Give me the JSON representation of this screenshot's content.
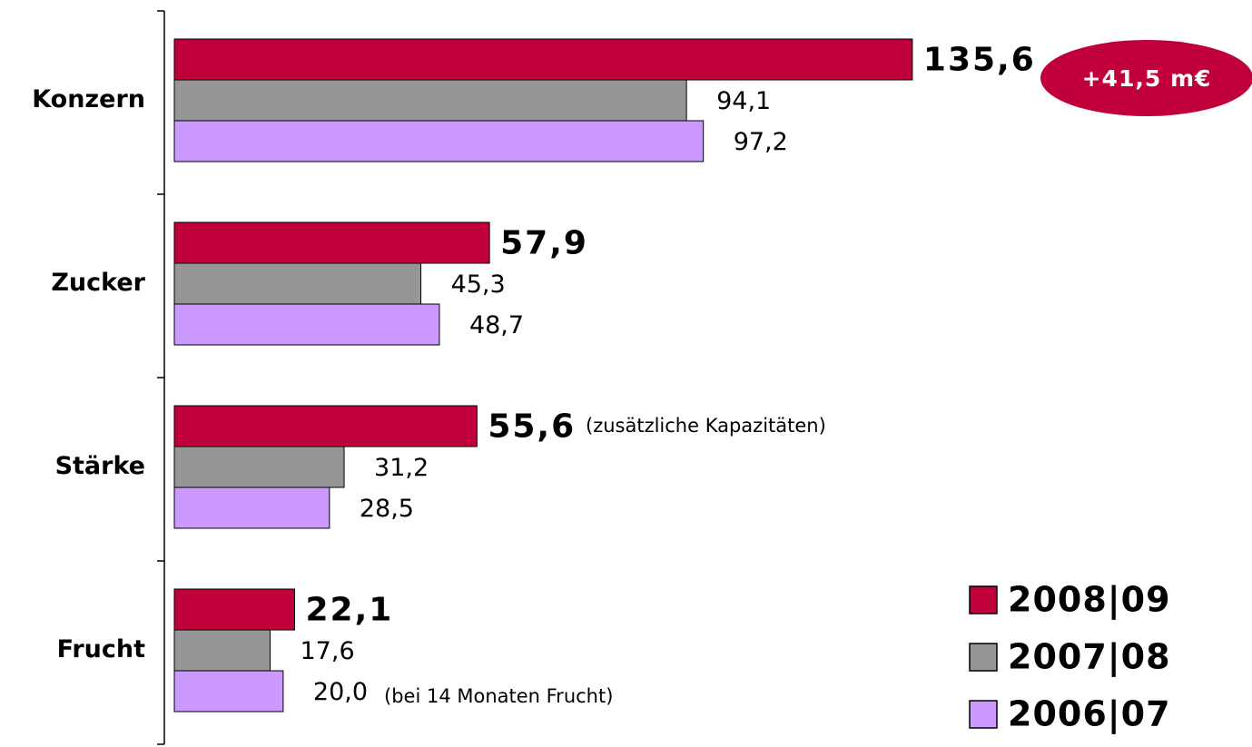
{
  "chart_data": {
    "type": "hbar",
    "categories": [
      "Konzern",
      "Zucker",
      "Stärke",
      "Frucht"
    ],
    "series": [
      {
        "name": "2008|09",
        "color": "#c0003a",
        "values": [
          135.6,
          57.9,
          55.6,
          22.1
        ],
        "value_labels": [
          "135,6",
          "57,9",
          "55,6",
          "22,1"
        ]
      },
      {
        "name": "2007|08",
        "color": "#969696",
        "values": [
          94.1,
          45.3,
          31.2,
          17.6
        ],
        "value_labels": [
          "94,1",
          "45,3",
          "31,2",
          "17,6"
        ]
      },
      {
        "name": "2006|07",
        "color": "#cc99ff",
        "values": [
          97.2,
          48.7,
          28.5,
          20.0
        ],
        "value_labels": [
          "97,2",
          "48,7",
          "28,5",
          "20,0"
        ]
      }
    ],
    "xlim": [
      0,
      195
    ],
    "annotations": [
      "+41,5 m€",
      "(zusätzliche Kapazitäten)",
      "(bei 14 Monaten Frucht)"
    ]
  }
}
